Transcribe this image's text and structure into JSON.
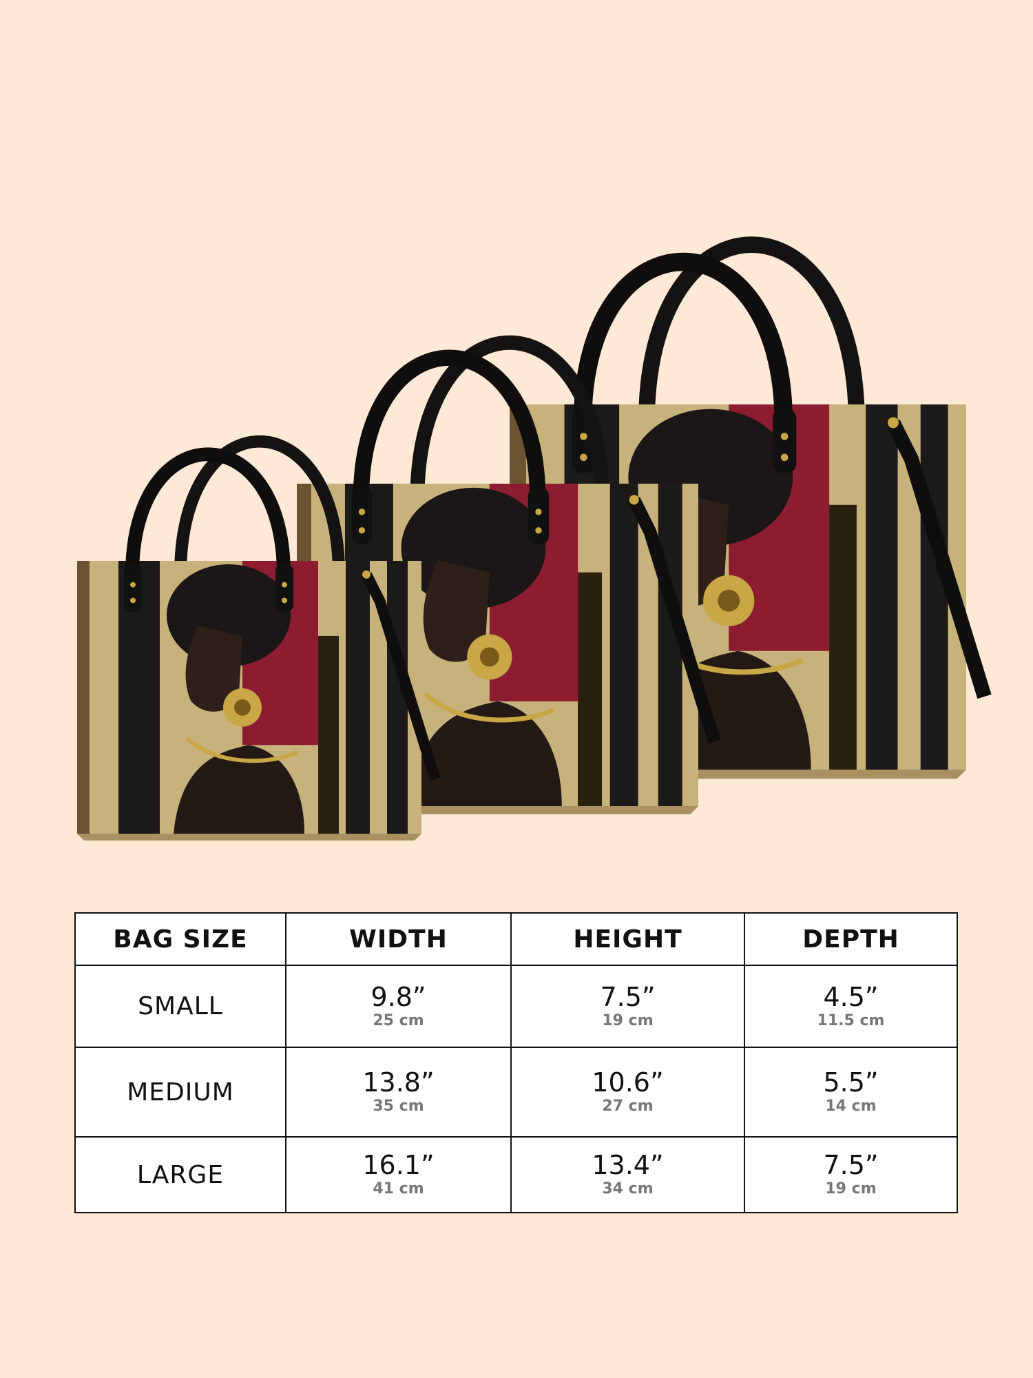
{
  "colors": {
    "background": "#fde9d5",
    "bag_gold": "#c8b27c",
    "bag_black": "#1c1a19",
    "bag_red": "#8c1c30",
    "metal": "#c9a646"
  },
  "product_image": {
    "bags": [
      "small",
      "medium",
      "large"
    ]
  },
  "size_table": {
    "headers": [
      "BAG SIZE",
      "WIDTH",
      "HEIGHT",
      "DEPTH"
    ],
    "rows": [
      {
        "size": "SMALL",
        "width": {
          "in": "9.8”",
          "cm": "25 cm"
        },
        "height": {
          "in": "7.5”",
          "cm": "19 cm"
        },
        "depth": {
          "in": "4.5”",
          "cm": "11.5 cm"
        }
      },
      {
        "size": "MEDIUM",
        "width": {
          "in": "13.8”",
          "cm": "35 cm"
        },
        "height": {
          "in": "10.6”",
          "cm": "27 cm"
        },
        "depth": {
          "in": "5.5”",
          "cm": "14 cm"
        }
      },
      {
        "size": "LARGE",
        "width": {
          "in": "16.1”",
          "cm": "41 cm"
        },
        "height": {
          "in": "13.4”",
          "cm": "34 cm"
        },
        "depth": {
          "in": "7.5”",
          "cm": "19 cm"
        }
      }
    ]
  }
}
